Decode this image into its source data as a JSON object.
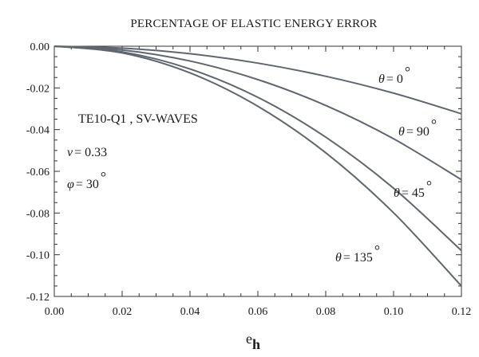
{
  "chart_data": {
    "type": "line",
    "title": "PERCENTAGE OF ELASTIC ENERGY ERROR",
    "xlabel": {
      "base": "e",
      "subscript": "h"
    },
    "ylabel": "",
    "xlim": [
      0,
      0.12
    ],
    "ylim": [
      -0.12,
      0.0
    ],
    "x_ticks": [
      "0.00",
      "0.02",
      "0.04",
      "0.06",
      "0.08",
      "0.10",
      "0.12"
    ],
    "y_ticks": [
      "0.00",
      "-0.02",
      "-0.04",
      "-0.06",
      "-0.08",
      "-0.10",
      "-0.12"
    ],
    "annotations": {
      "line1": "TE10-Q1 ,  SV-WAVES",
      "nu_symbol": "ν",
      "nu_value": "= 0.33",
      "phi_symbol": "φ",
      "phi_value": "= 30",
      "degree": "°"
    },
    "series": [
      {
        "name": "θ = 0°",
        "theta_label": "θ",
        "label_value": "= 0",
        "x": [
          0,
          0.02,
          0.04,
          0.06,
          0.08,
          0.1,
          0.12
        ],
        "y": [
          0,
          -0.0009,
          -0.0036,
          -0.0081,
          -0.0144,
          -0.0225,
          -0.0324
        ]
      },
      {
        "name": "θ = 90°",
        "theta_label": "θ",
        "label_value": "= 90",
        "x": [
          0,
          0.02,
          0.04,
          0.06,
          0.08,
          0.1,
          0.12
        ],
        "y": [
          0,
          -0.0018,
          -0.0071,
          -0.016,
          -0.0284,
          -0.0444,
          -0.064
        ]
      },
      {
        "name": "θ = 45°",
        "theta_label": "θ",
        "label_value": "= 45",
        "x": [
          0,
          0.02,
          0.04,
          0.06,
          0.08,
          0.1,
          0.12
        ],
        "y": [
          0,
          -0.0027,
          -0.0109,
          -0.0245,
          -0.0436,
          -0.0681,
          -0.098
        ]
      },
      {
        "name": "θ = 135°",
        "theta_label": "θ",
        "label_value": "= 135",
        "x": [
          0,
          0.02,
          0.04,
          0.06,
          0.08,
          0.1,
          0.12
        ],
        "y": [
          0,
          -0.0032,
          -0.0128,
          -0.0288,
          -0.0511,
          -0.0799,
          -0.115
        ]
      }
    ]
  }
}
